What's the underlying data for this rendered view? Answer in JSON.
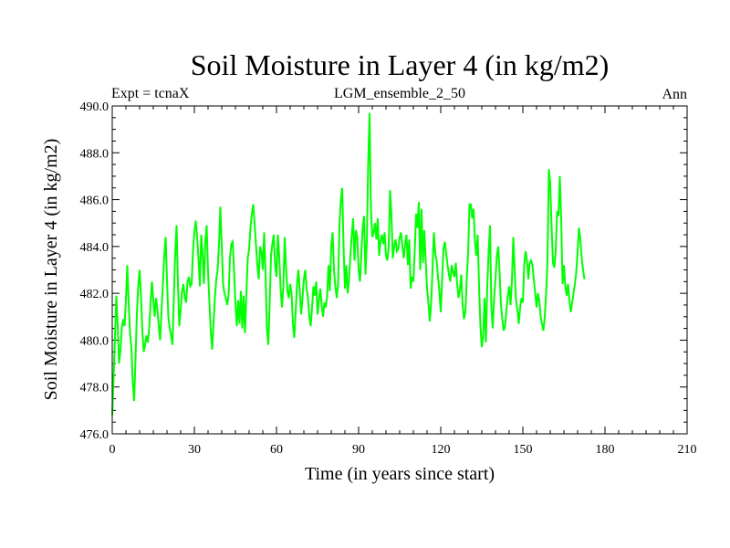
{
  "colors": {
    "background": "#ffffff",
    "axis": "#000000",
    "series": "#00ff00"
  },
  "chart_data": {
    "type": "line",
    "title": "Soil Moisture in Layer 4 (in kg/m2)",
    "left_label": "Expt = tcnaX",
    "center_label": "LGM_ensemble_2_50",
    "right_label": "Ann",
    "xlabel": "Time (in years since start)",
    "ylabel": "Soil Moisture in Layer 4 (in kg/m2)",
    "xlim": [
      0,
      210
    ],
    "ylim": [
      476,
      490
    ],
    "xticks": [
      0,
      30,
      60,
      90,
      120,
      150,
      180,
      210
    ],
    "xtick_labels": [
      "0",
      "30",
      "60",
      "90",
      "120",
      "150",
      "180",
      "210"
    ],
    "yticks": [
      476,
      478,
      480,
      482,
      484,
      486,
      488,
      490
    ],
    "ytick_labels": [
      "476.0",
      "478.0",
      "480.0",
      "482.0",
      "484.0",
      "486.0",
      "488.0",
      "490.0"
    ],
    "x_start": 0,
    "x_step": 0.5,
    "series": [
      {
        "name": "Soil Moisture in Layer 4",
        "values": [
          476.8,
          478.4,
          480.2,
          481.9,
          480.6,
          479.0,
          479.6,
          480.5,
          480.9,
          480.6,
          481.7,
          483.2,
          481.6,
          480.3,
          479.7,
          478.2,
          477.4,
          479.2,
          481.1,
          482.3,
          483.0,
          481.9,
          480.4,
          479.5,
          479.8,
          480.2,
          479.9,
          480.5,
          481.6,
          482.5,
          481.7,
          481.0,
          481.8,
          481.3,
          480.6,
          480.0,
          481.2,
          482.4,
          483.6,
          484.4,
          482.6,
          481.0,
          480.5,
          480.2,
          479.8,
          481.8,
          483.7,
          484.9,
          482.4,
          480.6,
          481.3,
          482.1,
          482.4,
          481.8,
          481.6,
          482.5,
          482.7,
          482.3,
          482.4,
          483.8,
          484.6,
          485.1,
          484.4,
          483.5,
          482.3,
          484.5,
          483.7,
          482.4,
          484.2,
          484.9,
          482.9,
          481.6,
          480.4,
          479.6,
          480.7,
          481.8,
          482.6,
          483.0,
          484.1,
          485.7,
          484.0,
          482.4,
          482.0,
          481.8,
          481.5,
          481.9,
          483.5,
          484.1,
          484.2,
          483.0,
          481.6,
          480.6,
          481.7,
          480.7,
          482.1,
          480.5,
          481.9,
          480.3,
          482.0,
          483.5,
          483.9,
          484.8,
          485.4,
          485.8,
          485.0,
          484.1,
          483.2,
          482.6,
          484.0,
          483.8,
          483.0,
          484.6,
          482.8,
          480.5,
          479.8,
          481.5,
          483.6,
          484.1,
          484.5,
          483.2,
          482.7,
          484.5,
          483.6,
          482.2,
          481.4,
          482.3,
          484.4,
          483.1,
          482.1,
          481.8,
          482.4,
          482.0,
          480.7,
          480.1,
          481.2,
          482.4,
          483.0,
          482.1,
          481.1,
          481.8,
          482.6,
          483.0,
          482.2,
          481.8,
          481.0,
          480.6,
          481.4,
          482.3,
          481.9,
          482.5,
          481.1,
          481.7,
          482.2,
          481.5,
          481.0,
          481.6,
          481.4,
          481.9,
          483.2,
          482.1,
          484.0,
          484.6,
          483.0,
          482.3,
          481.8,
          482.4,
          484.9,
          486.0,
          486.5,
          484.0,
          482.2,
          483.2,
          482.0,
          482.6,
          483.6,
          484.5,
          485.2,
          483.4,
          484.7,
          484.4,
          483.0,
          482.5,
          483.7,
          484.8,
          485.3,
          482.8,
          484.2,
          487.5,
          489.7,
          485.6,
          484.4,
          484.6,
          485.0,
          484.3,
          485.2,
          483.6,
          484.2,
          484.5,
          484.1,
          484.6,
          483.6,
          483.4,
          484.0,
          486.4,
          485.3,
          483.5,
          484.0,
          484.3,
          483.8,
          483.9,
          484.4,
          484.6,
          484.0,
          483.5,
          484.1,
          484.5,
          483.2,
          484.3,
          482.2,
          482.7,
          482.5,
          483.8,
          485.4,
          484.8,
          485.9,
          483.0,
          485.6,
          483.3,
          484.7,
          483.4,
          482.2,
          481.6,
          480.8,
          481.6,
          483.0,
          484.6,
          483.7,
          483.4,
          482.7,
          482.1,
          481.2,
          482.6,
          483.9,
          484.2,
          483.7,
          483.2,
          482.8,
          482.5,
          483.2,
          482.9,
          482.7,
          483.3,
          482.4,
          481.8,
          482.2,
          482.8,
          481.5,
          480.9,
          481.2,
          482.6,
          483.7,
          485.8,
          485.8,
          485.2,
          485.6,
          484.2,
          483.6,
          484.5,
          482.3,
          480.6,
          479.7,
          480.2,
          481.8,
          479.9,
          482.3,
          483.8,
          484.9,
          481.4,
          480.5,
          481.8,
          482.6,
          483.6,
          484.0,
          482.9,
          481.5,
          480.9,
          480.4,
          480.6,
          481.3,
          481.9,
          482.3,
          481.5,
          482.5,
          484.4,
          483.0,
          481.7,
          481.3,
          480.7,
          481.4,
          481.8,
          481.6,
          483.2,
          483.8,
          483.4,
          482.6,
          483.3,
          483.4,
          483.2,
          482.6,
          482.0,
          481.4,
          482.0,
          481.7,
          481.0,
          480.7,
          480.4,
          481.0,
          482.0,
          483.4,
          487.3,
          486.7,
          484.8,
          483.3,
          483.1,
          483.8,
          485.5,
          485.3,
          487.0,
          485.2,
          482.4,
          483.2,
          482.3,
          481.9,
          482.4,
          481.7,
          481.2,
          481.6,
          482.0,
          482.4,
          482.9,
          483.8,
          484.8,
          484.3,
          483.5,
          483.0,
          482.6
        ]
      }
    ]
  }
}
